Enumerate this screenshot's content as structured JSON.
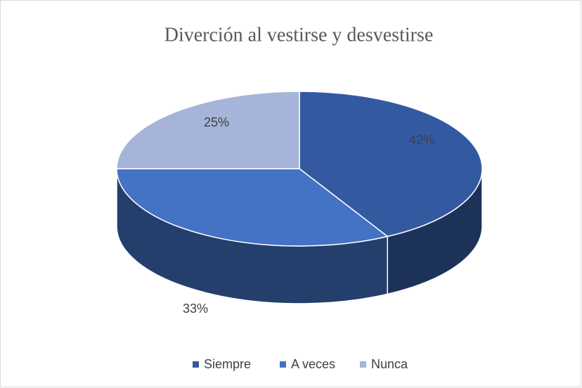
{
  "chart_data": {
    "type": "pie",
    "title": "Diverción al vestirse y desvestirse",
    "categories": [
      "Siempre",
      "A veces",
      "Nunca"
    ],
    "values": [
      42,
      33,
      25
    ],
    "value_labels": [
      "42%",
      "33%",
      "25%"
    ],
    "colors": [
      "#335aa1",
      "#4472c4",
      "#a5b4d8"
    ],
    "legend": "bottom"
  }
}
